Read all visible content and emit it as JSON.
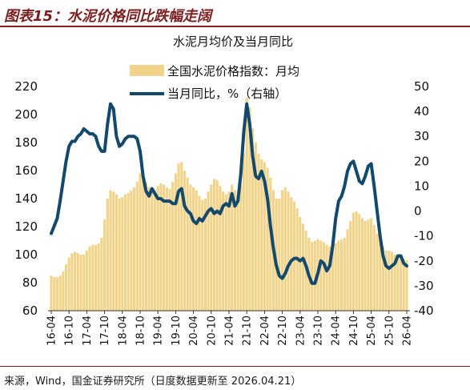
{
  "header": {
    "title": "图表15：水泥价格同比跌幅走阔"
  },
  "footer": {
    "source": "来源，Wind，国金证券研究所（日度数据更新至 2026.04.21）"
  },
  "colors": {
    "title": "#7a1f1f",
    "rule": "#8b1e1e",
    "axis": "#333333"
  },
  "chart_data": {
    "type": "bar",
    "title": "水泥月均价及当月同比",
    "legend": "top-center",
    "grid": false,
    "x": [
      "16-04",
      "16-05",
      "16-06",
      "16-07",
      "16-08",
      "16-09",
      "16-10",
      "16-11",
      "16-12",
      "17-01",
      "17-02",
      "17-03",
      "17-04",
      "17-05",
      "17-06",
      "17-07",
      "17-08",
      "17-09",
      "17-10",
      "17-11",
      "17-12",
      "18-01",
      "18-02",
      "18-03",
      "18-04",
      "18-05",
      "18-06",
      "18-07",
      "18-08",
      "18-09",
      "18-10",
      "18-11",
      "18-12",
      "19-01",
      "19-02",
      "19-03",
      "19-04",
      "19-05",
      "19-06",
      "19-07",
      "19-08",
      "19-09",
      "19-10",
      "19-11",
      "19-12",
      "20-01",
      "20-02",
      "20-03",
      "20-04",
      "20-05",
      "20-06",
      "20-07",
      "20-08",
      "20-09",
      "20-10",
      "20-11",
      "20-12",
      "21-01",
      "21-02",
      "21-03",
      "21-04",
      "21-05",
      "21-06",
      "21-07",
      "21-08",
      "21-09",
      "21-10",
      "21-11",
      "21-12",
      "22-01",
      "22-02",
      "22-03",
      "22-04",
      "22-05",
      "22-06",
      "22-07",
      "22-08",
      "22-09",
      "22-10",
      "22-11",
      "22-12",
      "23-01",
      "23-02",
      "23-03",
      "23-04",
      "23-05",
      "23-06",
      "23-07",
      "23-08",
      "23-09",
      "23-10",
      "23-11",
      "23-12",
      "24-01",
      "24-02",
      "24-03",
      "24-04",
      "24-05",
      "24-06",
      "24-07",
      "24-08",
      "24-09",
      "24-10",
      "24-11",
      "24-12",
      "25-01",
      "25-02",
      "25-03",
      "25-04",
      "25-05",
      "25-06",
      "25-07",
      "25-08",
      "25-09",
      "25-10",
      "25-11",
      "25-12",
      "26-01",
      "26-02",
      "26-03",
      "26-04"
    ],
    "x_ticks": [
      "16-04",
      "16-10",
      "17-04",
      "17-10",
      "18-04",
      "18-10",
      "19-04",
      "19-10",
      "20-04",
      "20-10",
      "21-04",
      "21-10",
      "22-04",
      "22-10",
      "23-04",
      "23-10",
      "24-04",
      "24-10",
      "25-04",
      "25-10",
      "26-04"
    ],
    "ylim": [
      60,
      220
    ],
    "y_ticks": [
      60,
      80,
      100,
      120,
      140,
      160,
      180,
      200,
      220
    ],
    "y2lim": [
      -40,
      50
    ],
    "y2_ticks": [
      -40,
      -30,
      -20,
      -10,
      0,
      10,
      20,
      30,
      40,
      50
    ],
    "series": [
      {
        "name": "全国水泥价格指数：月均",
        "type": "bar",
        "axis": "left",
        "color": "#f1d38a",
        "values": [
          85,
          84,
          84,
          85,
          88,
          93,
          98,
          101,
          102,
          101,
          100,
          100,
          103,
          106,
          107,
          107,
          108,
          112,
          125,
          140,
          146,
          145,
          143,
          140,
          141,
          143,
          144,
          146,
          148,
          152,
          158,
          158,
          152,
          148,
          146,
          146,
          149,
          151,
          150,
          148,
          147,
          152,
          158,
          165,
          166,
          160,
          155,
          150,
          148,
          146,
          142,
          139,
          140,
          145,
          150,
          154,
          153,
          149,
          145,
          143,
          145,
          150,
          146,
          143,
          150,
          172,
          212,
          205,
          190,
          180,
          172,
          168,
          166,
          162,
          155,
          146,
          140,
          140,
          146,
          148,
          145,
          141,
          138,
          133,
          127,
          122,
          117,
          112,
          109,
          110,
          111,
          110,
          109,
          107,
          106,
          106,
          108,
          110,
          111,
          112,
          118,
          124,
          130,
          131,
          129,
          126,
          124,
          125,
          126,
          121,
          115,
          110,
          106,
          103,
          103,
          102,
          100,
          99,
          98,
          97,
          96
        ]
      },
      {
        "name": "当月同比，%（右轴）",
        "type": "line",
        "axis": "right",
        "color": "#13496d",
        "values": [
          -9,
          -6,
          -3,
          4,
          12,
          20,
          26,
          28,
          28,
          30,
          31,
          33,
          32,
          31,
          31,
          30,
          26,
          24,
          24,
          35,
          43,
          41,
          30,
          26,
          27,
          29,
          30,
          30,
          30,
          29,
          24,
          14,
          8,
          6,
          9,
          7,
          5,
          5,
          4,
          4,
          4,
          3,
          3,
          8,
          9,
          2,
          0,
          -1,
          -4,
          -5,
          -3,
          -4,
          -2,
          0,
          1,
          -1,
          0,
          -1,
          2,
          3,
          2,
          7,
          2,
          4,
          15,
          32,
          43,
          35,
          22,
          14,
          13,
          16,
          12,
          5,
          -6,
          -15,
          -22,
          -26,
          -27,
          -25,
          -22,
          -20,
          -19,
          -19,
          -20,
          -19,
          -22,
          -26,
          -29,
          -29,
          -25,
          -20,
          -21,
          -24,
          -22,
          -14,
          -3,
          4,
          6,
          10,
          16,
          19,
          20,
          16,
          12,
          11,
          14,
          18,
          19,
          10,
          0,
          -10,
          -18,
          -22,
          -23,
          -22,
          -21,
          -18,
          -18,
          -21,
          -22
        ]
      }
    ]
  }
}
